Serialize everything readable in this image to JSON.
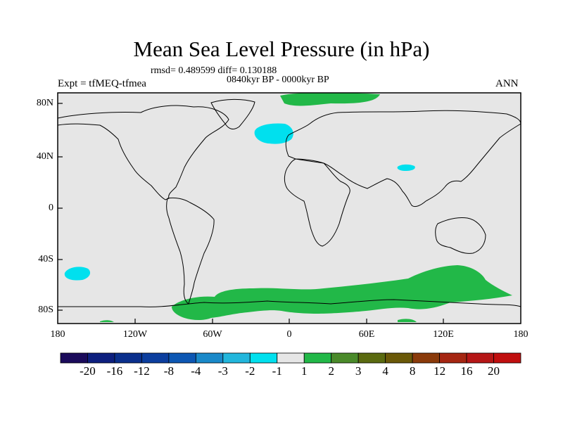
{
  "title": "Mean Sea Level Pressure (in hPa)",
  "stats": "rmsd= 0.489599 diff= 0.130188",
  "period": "0840kyr BP - 0000kyr BP",
  "experiment": "Expt = tfMEQ-tfmea",
  "season": "ANN",
  "axes": {
    "y_ticks": [
      "80N",
      "40N",
      "0",
      "40S",
      "80S"
    ],
    "x_ticks": [
      "180",
      "120W",
      "60W",
      "0",
      "60E",
      "120E",
      "180"
    ]
  },
  "colorbar": {
    "labels": [
      "-20",
      "-16",
      "-12",
      "-8",
      "-4",
      "-3",
      "-2",
      "-1",
      "1",
      "2",
      "3",
      "4",
      "8",
      "12",
      "16",
      "20"
    ],
    "colors": [
      "#1b0b5b",
      "#0d1f7e",
      "#0a2f8c",
      "#0c3e9e",
      "#0d57b3",
      "#1a89c9",
      "#22b6dc",
      "#00e0ee",
      "#e6e6e6",
      "#22b848",
      "#4a8a2a",
      "#5a6a10",
      "#6a5808",
      "#8a3a0a",
      "#a52612",
      "#b51616",
      "#c00f0f"
    ]
  },
  "anomaly_colors": {
    "background": "#e6e6e6",
    "positive": "#22b848",
    "negative": "#00e0ee"
  }
}
